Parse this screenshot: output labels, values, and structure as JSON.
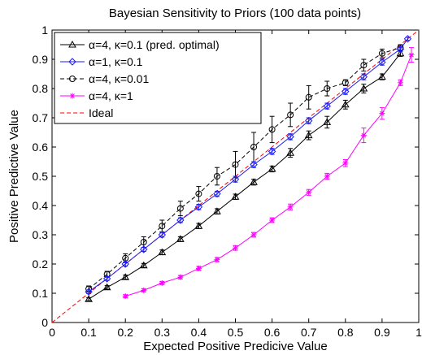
{
  "chart_data": {
    "type": "line",
    "title": "Bayesian Sensitivity to Priors (100 data points)",
    "xlabel": "Expected Positive Predicive Value",
    "ylabel": "Positive Predictive Value",
    "xlim": [
      0,
      1
    ],
    "ylim": [
      0,
      1
    ],
    "xticks": [
      "0",
      "0.1",
      "0.2",
      "0.3",
      "0.4",
      "0.5",
      "0.6",
      "0.7",
      "0.8",
      "0.9",
      "1"
    ],
    "yticks": [
      "0",
      "0.1",
      "0.2",
      "0.3",
      "0.4",
      "0.5",
      "0.6",
      "0.7",
      "0.8",
      "0.9",
      "1"
    ],
    "grid": false,
    "legend_position": "top-left",
    "series": [
      {
        "name": "α=4, κ=0.1 (pred. optimal)",
        "color": "#000000",
        "dash": "solid",
        "marker": "triangle",
        "x": [
          0.1,
          0.15,
          0.2,
          0.25,
          0.3,
          0.35,
          0.4,
          0.45,
          0.5,
          0.55,
          0.6,
          0.65,
          0.7,
          0.75,
          0.8,
          0.85,
          0.9,
          0.95
        ],
        "y": [
          0.08,
          0.12,
          0.155,
          0.195,
          0.24,
          0.285,
          0.33,
          0.38,
          0.43,
          0.48,
          0.525,
          0.58,
          0.64,
          0.685,
          0.745,
          0.8,
          0.84,
          0.92
        ],
        "err": [
          0.005,
          0.006,
          0.007,
          0.007,
          0.008,
          0.008,
          0.009,
          0.009,
          0.009,
          0.01,
          0.01,
          0.015,
          0.015,
          0.02,
          0.015,
          0.015,
          0.01,
          0.01
        ]
      },
      {
        "name": "α=1, κ=0.1",
        "color": "#1a1aff",
        "dash": "solid",
        "marker": "diamond",
        "x": [
          0.1,
          0.15,
          0.2,
          0.25,
          0.3,
          0.35,
          0.4,
          0.45,
          0.5,
          0.55,
          0.6,
          0.65,
          0.7,
          0.75,
          0.8,
          0.85,
          0.9,
          0.95,
          0.97
        ],
        "y": [
          0.105,
          0.15,
          0.2,
          0.25,
          0.3,
          0.35,
          0.395,
          0.44,
          0.49,
          0.54,
          0.585,
          0.635,
          0.69,
          0.74,
          0.79,
          0.84,
          0.89,
          0.935,
          0.97
        ],
        "err": [
          0.006,
          0.006,
          0.007,
          0.007,
          0.008,
          0.008,
          0.009,
          0.009,
          0.01,
          0.01,
          0.01,
          0.01,
          0.01,
          0.01,
          0.01,
          0.01,
          0.01,
          0.008,
          0.005
        ]
      },
      {
        "name": "α=4, κ=0.01",
        "color": "#000000",
        "dash": "dashed",
        "marker": "circle",
        "x": [
          0.1,
          0.15,
          0.2,
          0.25,
          0.3,
          0.35,
          0.4,
          0.45,
          0.5,
          0.55,
          0.6,
          0.65,
          0.7,
          0.75,
          0.8,
          0.85,
          0.9,
          0.95
        ],
        "y": [
          0.115,
          0.165,
          0.22,
          0.275,
          0.33,
          0.39,
          0.44,
          0.5,
          0.54,
          0.6,
          0.66,
          0.71,
          0.77,
          0.8,
          0.82,
          0.88,
          0.92,
          0.94
        ],
        "err": [
          0.01,
          0.01,
          0.015,
          0.018,
          0.02,
          0.025,
          0.025,
          0.03,
          0.045,
          0.05,
          0.045,
          0.04,
          0.04,
          0.025,
          0.01,
          0.02,
          0.015,
          0.01
        ]
      },
      {
        "name": "α=4, κ=1",
        "color": "#ff00ff",
        "dash": "solid",
        "marker": "star",
        "x": [
          0.2,
          0.25,
          0.3,
          0.35,
          0.4,
          0.45,
          0.5,
          0.55,
          0.6,
          0.65,
          0.7,
          0.75,
          0.8,
          0.85,
          0.9,
          0.95,
          0.98
        ],
        "y": [
          0.09,
          0.11,
          0.135,
          0.155,
          0.185,
          0.215,
          0.255,
          0.3,
          0.35,
          0.395,
          0.445,
          0.5,
          0.545,
          0.64,
          0.715,
          0.82,
          0.915
        ],
        "err": [
          0.005,
          0.005,
          0.005,
          0.006,
          0.007,
          0.007,
          0.008,
          0.008,
          0.008,
          0.01,
          0.01,
          0.01,
          0.012,
          0.025,
          0.02,
          0.01,
          0.025
        ]
      },
      {
        "name": "Ideal",
        "color": "#ff0000",
        "dash": "dashed",
        "marker": "none",
        "x": [
          0,
          1
        ],
        "y": [
          0,
          1
        ]
      }
    ]
  }
}
